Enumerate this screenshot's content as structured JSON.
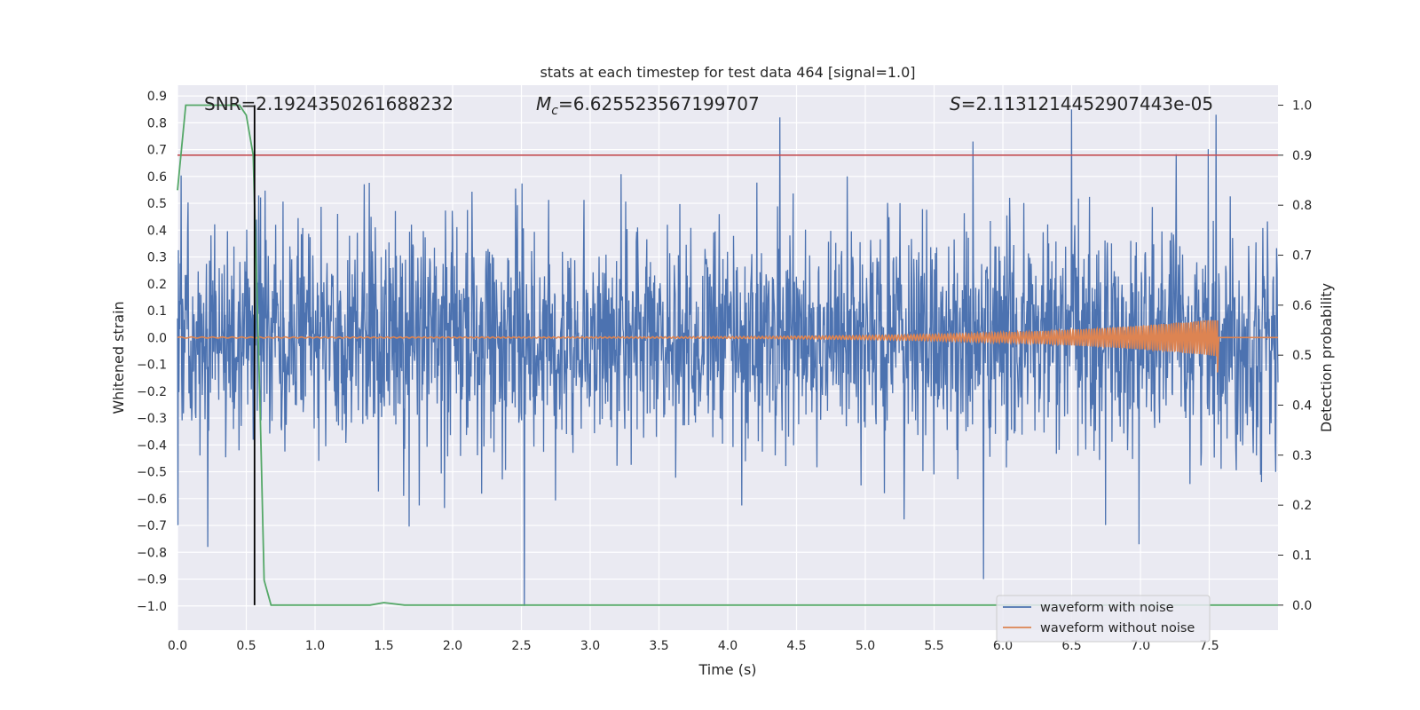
{
  "chart_data": {
    "type": "line",
    "title": "stats at each timestep for test data 464 [signal=1.0]",
    "xlabel": "Time (s)",
    "ylabel": "Whitened strain",
    "ylabel_right": "Detection probability",
    "xlim": [
      0.0,
      8.0
    ],
    "ylim": [
      -1.09,
      0.94
    ],
    "ylim_right": [
      -0.05,
      1.04
    ],
    "x_ticks": [
      "0.0",
      "0.5",
      "1.0",
      "1.5",
      "2.0",
      "2.5",
      "3.0",
      "3.5",
      "4.0",
      "4.5",
      "5.0",
      "5.5",
      "6.0",
      "6.5",
      "7.0",
      "7.5"
    ],
    "y_ticks": [
      "0.9",
      "0.8",
      "0.7",
      "0.6",
      "0.5",
      "0.4",
      "0.3",
      "0.2",
      "0.1",
      "0.0",
      "−0.1",
      "−0.2",
      "−0.3",
      "−0.4",
      "−0.5",
      "−0.6",
      "−0.7",
      "−0.8",
      "−0.9",
      "−1.0"
    ],
    "y_ticks_right": [
      "1.0",
      "0.9",
      "0.8",
      "0.7",
      "0.6",
      "0.5",
      "0.4",
      "0.3",
      "0.2",
      "0.1",
      "0.0"
    ],
    "annotations": {
      "snr": "SNR=2.1924350261688232",
      "mc_symbol": "M",
      "mc_sub": "c",
      "mc_value": "=6.625523567199707",
      "s_symbol": "S",
      "s_value": "=2.1131214452907443e-05"
    },
    "legend": {
      "position": "lower-right",
      "entries": [
        "waveform with noise",
        "waveform without noise"
      ]
    },
    "colors": {
      "noise": "#4c72b0",
      "clean": "#dd8452",
      "probability": "#55a868",
      "threshold": "#c44e52",
      "marker": "#000000",
      "background": "#eaeaf2",
      "grid": "#ffffff"
    },
    "threshold_right": 0.9,
    "marker_x": 0.56,
    "noise_envelope": {
      "x_range": [
        0.0,
        8.0
      ],
      "y_max": 0.85,
      "y_min": -1.0,
      "notable_spikes": [
        {
          "x": 2.52,
          "y": -1.0
        },
        {
          "x": 5.86,
          "y": -0.9
        },
        {
          "x": 6.5,
          "y": 0.85
        },
        {
          "x": 7.55,
          "y": 0.83
        },
        {
          "x": 4.38,
          "y": 0.82
        },
        {
          "x": 0.22,
          "y": -0.78
        },
        {
          "x": 6.99,
          "y": -0.77
        }
      ]
    },
    "clean_waveform": {
      "x_range": [
        0.0,
        7.56
      ],
      "amplitude_start": 0.002,
      "amplitude_end": 0.07,
      "after_merger": 0.0
    },
    "probability_series": {
      "name": "",
      "x": [
        0.0,
        0.06,
        0.1,
        0.15,
        0.3,
        0.45,
        0.5,
        0.55,
        0.6,
        0.63,
        0.68,
        0.8,
        1.0,
        1.4,
        1.5,
        1.65,
        2.0,
        4.0,
        6.0,
        8.0
      ],
      "y": [
        0.83,
        1.0,
        1.0,
        1.0,
        1.0,
        1.0,
        0.98,
        0.9,
        0.4,
        0.05,
        0.0,
        0.0,
        0.0,
        0.0,
        0.005,
        0.0,
        0.0,
        0.0,
        0.0,
        0.0
      ]
    }
  }
}
